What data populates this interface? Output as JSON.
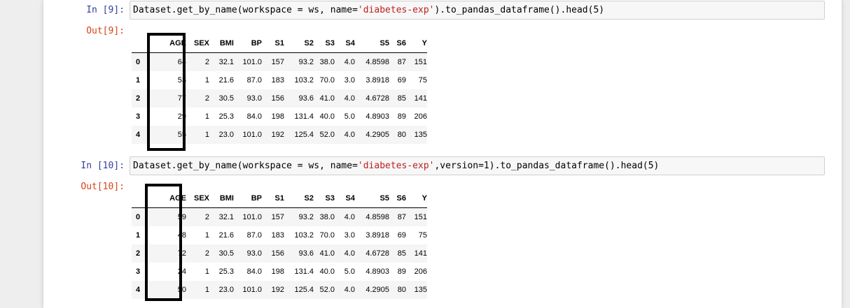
{
  "cells": [
    {
      "in_prompt": "In [9]:",
      "out_prompt": "Out[9]:",
      "code": {
        "pre": "Dataset.get_by_name(workspace = ws, name=",
        "str": "'diabetes-exp'",
        "post": ").to_pandas_dataframe().head(5)"
      },
      "columns": [
        "",
        "AGE",
        "SEX",
        "BMI",
        "BP",
        "S1",
        "S2",
        "S3",
        "S4",
        "S5",
        "S6",
        "Y"
      ],
      "rows": [
        [
          "0",
          "64",
          "2",
          "32.1",
          "101.0",
          "157",
          "93.2",
          "38.0",
          "4.0",
          "4.8598",
          "87",
          "151"
        ],
        [
          "1",
          "53",
          "1",
          "21.6",
          "87.0",
          "183",
          "103.2",
          "70.0",
          "3.0",
          "3.8918",
          "69",
          "75"
        ],
        [
          "2",
          "77",
          "2",
          "30.5",
          "93.0",
          "156",
          "93.6",
          "41.0",
          "4.0",
          "4.6728",
          "85",
          "141"
        ],
        [
          "3",
          "29",
          "1",
          "25.3",
          "84.0",
          "198",
          "131.4",
          "40.0",
          "5.0",
          "4.8903",
          "89",
          "206"
        ],
        [
          "4",
          "55",
          "1",
          "23.0",
          "101.0",
          "192",
          "125.4",
          "52.0",
          "4.0",
          "4.2905",
          "80",
          "135"
        ]
      ]
    },
    {
      "in_prompt": "In [10]:",
      "out_prompt": "Out[10]:",
      "code": {
        "pre": "Dataset.get_by_name(workspace = ws, name=",
        "str": "'diabetes-exp'",
        "post": ",version=1).to_pandas_dataframe().head(5)"
      },
      "columns": [
        "",
        "AGE",
        "SEX",
        "BMI",
        "BP",
        "S1",
        "S2",
        "S3",
        "S4",
        "S5",
        "S6",
        "Y"
      ],
      "rows": [
        [
          "0",
          "59",
          "2",
          "32.1",
          "101.0",
          "157",
          "93.2",
          "38.0",
          "4.0",
          "4.8598",
          "87",
          "151"
        ],
        [
          "1",
          "48",
          "1",
          "21.6",
          "87.0",
          "183",
          "103.2",
          "70.0",
          "3.0",
          "3.8918",
          "69",
          "75"
        ],
        [
          "2",
          "72",
          "2",
          "30.5",
          "93.0",
          "156",
          "93.6",
          "41.0",
          "4.0",
          "4.6728",
          "85",
          "141"
        ],
        [
          "3",
          "24",
          "1",
          "25.3",
          "84.0",
          "198",
          "131.4",
          "40.0",
          "5.0",
          "4.8903",
          "89",
          "206"
        ],
        [
          "4",
          "50",
          "1",
          "23.0",
          "101.0",
          "192",
          "125.4",
          "52.0",
          "4.0",
          "4.2905",
          "80",
          "135"
        ]
      ]
    }
  ],
  "colors": {
    "in_prompt": "#303f9f",
    "out_prompt": "#d84315",
    "string_literal": "#ba2121",
    "highlight_box": "#000000"
  }
}
